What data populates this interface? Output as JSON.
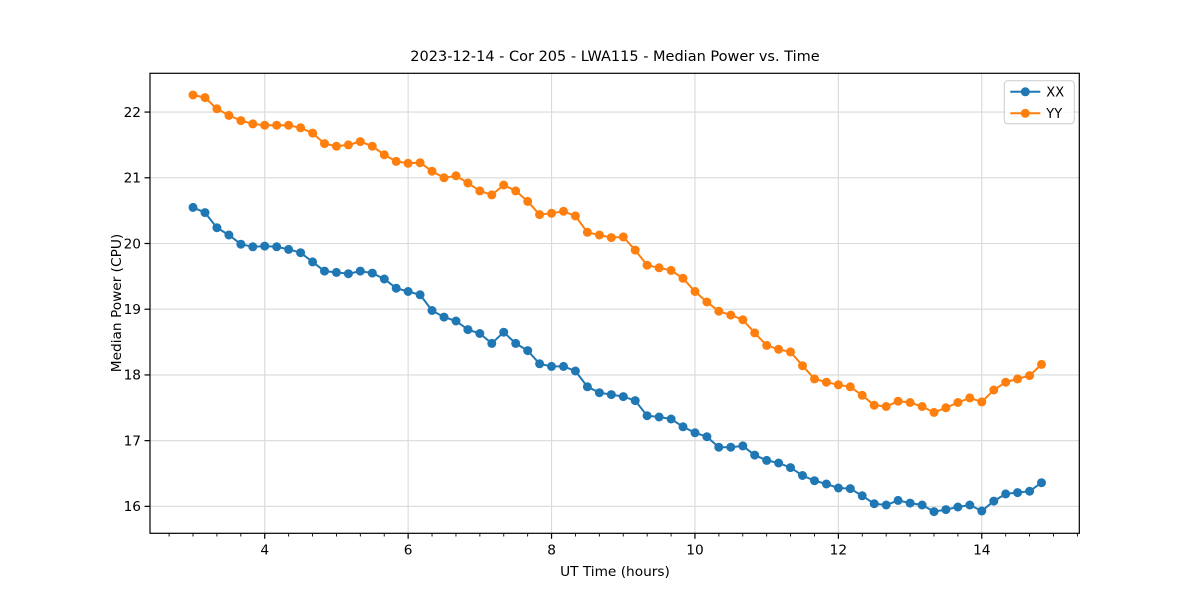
{
  "chart_data": {
    "type": "line",
    "title": "2023-12-14 - Cor 205 - LWA115 - Median Power vs. Time",
    "xlabel": "UT Time (hours)",
    "ylabel": "Median Power (CPU)",
    "xlim": [
      2.4,
      15.36
    ],
    "ylim": [
      15.59,
      22.59
    ],
    "x_ticks": [
      4,
      6,
      8,
      10,
      12,
      14
    ],
    "y_ticks": [
      16,
      17,
      18,
      19,
      20,
      21,
      22
    ],
    "x_minor_tick_step": 0.3333,
    "grid": true,
    "legend_position": "upper right",
    "marker": "circle",
    "colors": {
      "XX": "#1f77b4",
      "YY": "#ff7f0e"
    },
    "grid_color": "#dadada",
    "x": [
      3.0,
      3.167,
      3.333,
      3.5,
      3.667,
      3.833,
      4.0,
      4.167,
      4.333,
      4.5,
      4.667,
      4.833,
      5.0,
      5.167,
      5.333,
      5.5,
      5.667,
      5.833,
      6.0,
      6.167,
      6.333,
      6.5,
      6.667,
      6.833,
      7.0,
      7.167,
      7.333,
      7.5,
      7.667,
      7.833,
      8.0,
      8.167,
      8.333,
      8.5,
      8.667,
      8.833,
      9.0,
      9.167,
      9.333,
      9.5,
      9.667,
      9.833,
      10.0,
      10.167,
      10.333,
      10.5,
      10.667,
      10.833,
      11.0,
      11.167,
      11.333,
      11.5,
      11.667,
      11.833,
      12.0,
      12.167,
      12.333,
      12.5,
      12.667,
      12.833,
      13.0,
      13.167,
      13.333,
      13.5,
      13.667,
      13.833,
      14.0,
      14.167,
      14.333,
      14.5,
      14.667,
      14.833
    ],
    "series": [
      {
        "name": "XX",
        "color": "#1f77b4",
        "values": [
          20.55,
          20.47,
          20.24,
          20.13,
          19.99,
          19.95,
          19.96,
          19.95,
          19.91,
          19.86,
          19.72,
          19.58,
          19.56,
          19.54,
          19.58,
          19.55,
          19.46,
          19.32,
          19.27,
          19.22,
          18.98,
          18.88,
          18.82,
          18.69,
          18.63,
          18.48,
          18.65,
          18.48,
          18.37,
          18.17,
          18.13,
          18.13,
          18.06,
          17.82,
          17.73,
          17.7,
          17.67,
          17.61,
          17.38,
          17.36,
          17.33,
          17.21,
          17.12,
          17.06,
          16.9,
          16.9,
          16.92,
          16.78,
          16.7,
          16.66,
          16.59,
          16.47,
          16.39,
          16.34,
          16.28,
          16.27,
          16.16,
          16.04,
          16.02,
          16.09,
          16.05,
          16.02,
          15.92,
          15.95,
          15.99,
          16.02,
          15.93,
          16.08,
          16.19,
          16.21,
          16.23,
          16.36
        ]
      },
      {
        "name": "YY",
        "color": "#ff7f0e",
        "values": [
          22.26,
          22.22,
          22.05,
          21.95,
          21.87,
          21.82,
          21.8,
          21.8,
          21.8,
          21.76,
          21.68,
          21.52,
          21.48,
          21.5,
          21.55,
          21.48,
          21.35,
          21.25,
          21.22,
          21.23,
          21.1,
          21.0,
          21.03,
          20.92,
          20.8,
          20.74,
          20.89,
          20.8,
          20.64,
          20.44,
          20.46,
          20.49,
          20.42,
          20.17,
          20.13,
          20.09,
          20.1,
          19.9,
          19.67,
          19.63,
          19.59,
          19.47,
          19.27,
          19.11,
          18.97,
          18.91,
          18.84,
          18.64,
          18.45,
          18.39,
          18.35,
          18.14,
          17.94,
          17.89,
          17.85,
          17.82,
          17.69,
          17.54,
          17.52,
          17.6,
          17.58,
          17.52,
          17.43,
          17.5,
          17.58,
          17.65,
          17.59,
          17.77,
          17.89,
          17.94,
          17.99,
          18.16
        ]
      }
    ],
    "legend": {
      "items": [
        "XX",
        "YY"
      ]
    }
  }
}
